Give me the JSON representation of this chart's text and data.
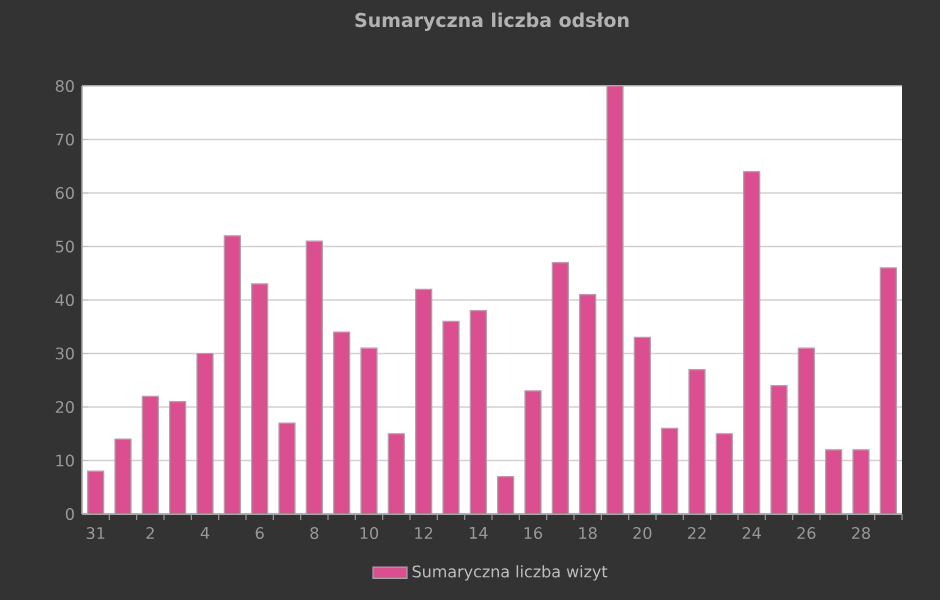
{
  "chart_data": {
    "type": "bar",
    "title": "Sumaryczna liczba odsłon",
    "categories": [
      "31",
      null,
      "2",
      null,
      "4",
      null,
      "6",
      null,
      "8",
      null,
      "10",
      null,
      "12",
      null,
      "14",
      null,
      "16",
      null,
      "18",
      null,
      "20",
      null,
      "22",
      null,
      "24",
      null,
      "26",
      null,
      "28",
      null
    ],
    "series": [
      {
        "name": "Sumaryczna liczba wizyt",
        "color": "#db4f91",
        "values": [
          8,
          14,
          22,
          21,
          30,
          52,
          43,
          17,
          51,
          34,
          31,
          15,
          42,
          36,
          38,
          7,
          23,
          47,
          41,
          80,
          33,
          16,
          27,
          15,
          64,
          24,
          31,
          12,
          12,
          46
        ]
      }
    ],
    "ylim": [
      0,
      80
    ],
    "yticks": [
      0,
      10,
      20,
      30,
      40,
      50,
      60,
      70,
      80
    ],
    "grid": "y",
    "legend": "bottom"
  }
}
